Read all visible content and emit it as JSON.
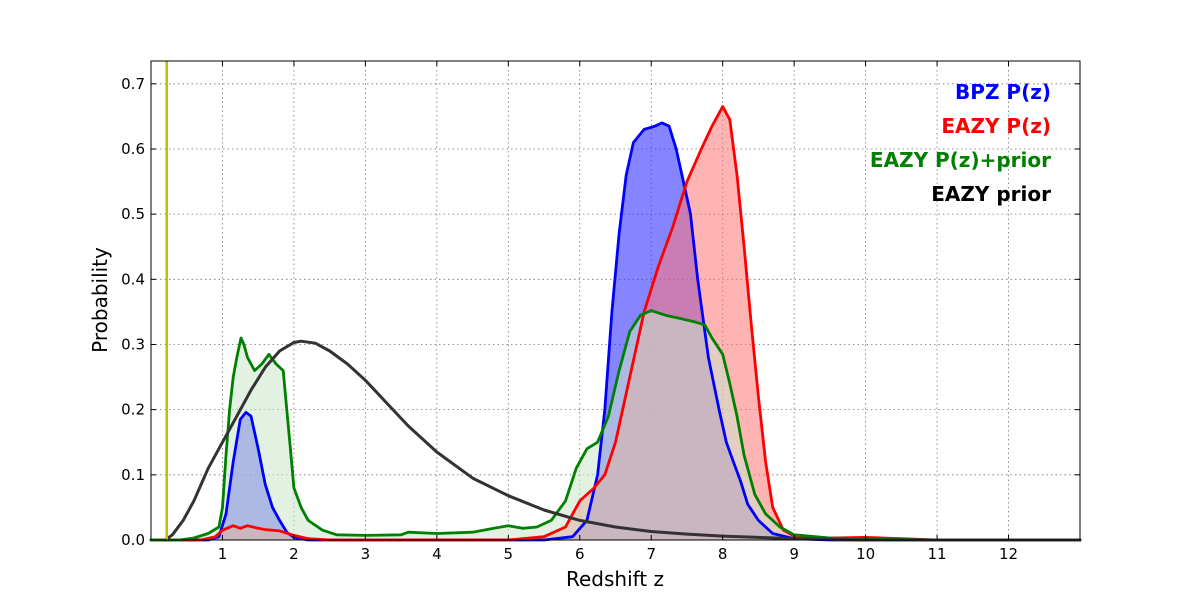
{
  "chart_data": {
    "type": "area",
    "title": "",
    "xlabel": "Redshift z",
    "ylabel": "Probability",
    "xlim": [
      0,
      13
    ],
    "ylim": [
      0,
      0.735
    ],
    "xticks": [
      1,
      2,
      3,
      4,
      5,
      6,
      7,
      8,
      9,
      10,
      11,
      12
    ],
    "yticks": [
      0.0,
      0.1,
      0.2,
      0.3,
      0.4,
      0.5,
      0.6,
      0.7
    ],
    "grid": true,
    "legend_position": "top-right",
    "vline": {
      "x": 0.22,
      "color": "#bfbf00"
    },
    "series": [
      {
        "name": "BPZ P(z)",
        "color": "#0000ff",
        "fill": "#3333ff",
        "fill_opacity": 0.6,
        "points": [
          [
            0,
            0
          ],
          [
            0.8,
            0
          ],
          [
            0.95,
            0.005
          ],
          [
            1.05,
            0.04
          ],
          [
            1.15,
            0.12
          ],
          [
            1.25,
            0.185
          ],
          [
            1.33,
            0.196
          ],
          [
            1.4,
            0.19
          ],
          [
            1.5,
            0.14
          ],
          [
            1.6,
            0.085
          ],
          [
            1.7,
            0.05
          ],
          [
            1.8,
            0.03
          ],
          [
            1.9,
            0.012
          ],
          [
            2.0,
            0.004
          ],
          [
            2.2,
            0
          ],
          [
            5.5,
            0
          ],
          [
            5.9,
            0.005
          ],
          [
            6.1,
            0.03
          ],
          [
            6.25,
            0.1
          ],
          [
            6.35,
            0.2
          ],
          [
            6.45,
            0.35
          ],
          [
            6.55,
            0.47
          ],
          [
            6.65,
            0.56
          ],
          [
            6.75,
            0.61
          ],
          [
            6.9,
            0.63
          ],
          [
            7.05,
            0.635
          ],
          [
            7.15,
            0.64
          ],
          [
            7.25,
            0.635
          ],
          [
            7.35,
            0.6
          ],
          [
            7.45,
            0.55
          ],
          [
            7.55,
            0.5
          ],
          [
            7.65,
            0.4
          ],
          [
            7.8,
            0.28
          ],
          [
            7.95,
            0.2
          ],
          [
            8.05,
            0.15
          ],
          [
            8.15,
            0.12
          ],
          [
            8.25,
            0.09
          ],
          [
            8.35,
            0.055
          ],
          [
            8.5,
            0.03
          ],
          [
            8.7,
            0.01
          ],
          [
            9.0,
            0.002
          ],
          [
            9.5,
            0
          ],
          [
            13,
            0
          ]
        ]
      },
      {
        "name": "EAZY P(z)",
        "color": "#ff0000",
        "fill": "#ff7777",
        "fill_opacity": 0.55,
        "points": [
          [
            0,
            0
          ],
          [
            0.7,
            0
          ],
          [
            0.9,
            0.005
          ],
          [
            1.0,
            0.015
          ],
          [
            1.15,
            0.022
          ],
          [
            1.25,
            0.018
          ],
          [
            1.35,
            0.022
          ],
          [
            1.5,
            0.018
          ],
          [
            1.6,
            0.016
          ],
          [
            1.8,
            0.014
          ],
          [
            2.0,
            0.007
          ],
          [
            2.2,
            0.002
          ],
          [
            2.5,
            0
          ],
          [
            5.0,
            0
          ],
          [
            5.5,
            0.005
          ],
          [
            5.8,
            0.02
          ],
          [
            6.0,
            0.06
          ],
          [
            6.2,
            0.08
          ],
          [
            6.35,
            0.1
          ],
          [
            6.5,
            0.15
          ],
          [
            6.7,
            0.25
          ],
          [
            6.9,
            0.35
          ],
          [
            7.1,
            0.42
          ],
          [
            7.3,
            0.48
          ],
          [
            7.5,
            0.55
          ],
          [
            7.7,
            0.6
          ],
          [
            7.85,
            0.635
          ],
          [
            8.0,
            0.665
          ],
          [
            8.1,
            0.645
          ],
          [
            8.2,
            0.56
          ],
          [
            8.3,
            0.45
          ],
          [
            8.4,
            0.33
          ],
          [
            8.5,
            0.22
          ],
          [
            8.6,
            0.12
          ],
          [
            8.7,
            0.05
          ],
          [
            8.85,
            0.015
          ],
          [
            9.0,
            0.006
          ],
          [
            9.5,
            0.003
          ],
          [
            10.0,
            0.004
          ],
          [
            10.5,
            0.002
          ],
          [
            11.0,
            0
          ],
          [
            13,
            0
          ]
        ]
      },
      {
        "name": "EAZY P(z)+prior",
        "color": "#008000",
        "fill": "#cce5cc",
        "fill_opacity": 0.55,
        "points": [
          [
            0,
            0
          ],
          [
            0.4,
            0
          ],
          [
            0.6,
            0.003
          ],
          [
            0.8,
            0.01
          ],
          [
            0.95,
            0.02
          ],
          [
            1.0,
            0.05
          ],
          [
            1.05,
            0.13
          ],
          [
            1.1,
            0.2
          ],
          [
            1.15,
            0.25
          ],
          [
            1.2,
            0.28
          ],
          [
            1.26,
            0.31
          ],
          [
            1.3,
            0.3
          ],
          [
            1.35,
            0.28
          ],
          [
            1.45,
            0.26
          ],
          [
            1.55,
            0.27
          ],
          [
            1.65,
            0.285
          ],
          [
            1.75,
            0.27
          ],
          [
            1.85,
            0.26
          ],
          [
            1.9,
            0.2
          ],
          [
            1.95,
            0.14
          ],
          [
            2.0,
            0.08
          ],
          [
            2.1,
            0.05
          ],
          [
            2.2,
            0.03
          ],
          [
            2.4,
            0.015
          ],
          [
            2.6,
            0.008
          ],
          [
            3.0,
            0.007
          ],
          [
            3.5,
            0.008
          ],
          [
            3.6,
            0.012
          ],
          [
            4.0,
            0.01
          ],
          [
            4.5,
            0.012
          ],
          [
            4.8,
            0.018
          ],
          [
            5.0,
            0.022
          ],
          [
            5.2,
            0.018
          ],
          [
            5.4,
            0.02
          ],
          [
            5.6,
            0.03
          ],
          [
            5.8,
            0.06
          ],
          [
            5.95,
            0.11
          ],
          [
            6.1,
            0.14
          ],
          [
            6.25,
            0.15
          ],
          [
            6.4,
            0.19
          ],
          [
            6.55,
            0.26
          ],
          [
            6.7,
            0.32
          ],
          [
            6.85,
            0.345
          ],
          [
            7.0,
            0.352
          ],
          [
            7.2,
            0.345
          ],
          [
            7.4,
            0.34
          ],
          [
            7.6,
            0.335
          ],
          [
            7.75,
            0.33
          ],
          [
            7.85,
            0.31
          ],
          [
            8.0,
            0.285
          ],
          [
            8.1,
            0.24
          ],
          [
            8.2,
            0.19
          ],
          [
            8.3,
            0.13
          ],
          [
            8.45,
            0.07
          ],
          [
            8.6,
            0.04
          ],
          [
            8.8,
            0.02
          ],
          [
            9.0,
            0.008
          ],
          [
            9.5,
            0.003
          ],
          [
            10.0,
            0.002
          ],
          [
            11.0,
            0
          ],
          [
            13,
            0
          ]
        ]
      },
      {
        "name": "EAZY prior",
        "color": "#333333",
        "fill": null,
        "fill_opacity": 0,
        "points": [
          [
            0.2,
            0
          ],
          [
            0.3,
            0.008
          ],
          [
            0.45,
            0.03
          ],
          [
            0.6,
            0.06
          ],
          [
            0.8,
            0.11
          ],
          [
            1.0,
            0.15
          ],
          [
            1.2,
            0.19
          ],
          [
            1.4,
            0.23
          ],
          [
            1.6,
            0.265
          ],
          [
            1.8,
            0.29
          ],
          [
            2.0,
            0.303
          ],
          [
            2.1,
            0.305
          ],
          [
            2.3,
            0.302
          ],
          [
            2.5,
            0.29
          ],
          [
            2.75,
            0.27
          ],
          [
            3.0,
            0.245
          ],
          [
            3.3,
            0.21
          ],
          [
            3.6,
            0.175
          ],
          [
            4.0,
            0.135
          ],
          [
            4.5,
            0.095
          ],
          [
            5.0,
            0.068
          ],
          [
            5.5,
            0.046
          ],
          [
            6.0,
            0.03
          ],
          [
            6.5,
            0.02
          ],
          [
            7.0,
            0.013
          ],
          [
            7.5,
            0.009
          ],
          [
            8.0,
            0.006
          ],
          [
            8.5,
            0.004
          ],
          [
            9.0,
            0.002
          ],
          [
            9.5,
            0.001
          ],
          [
            10.0,
            0
          ],
          [
            13,
            0
          ]
        ]
      }
    ]
  }
}
